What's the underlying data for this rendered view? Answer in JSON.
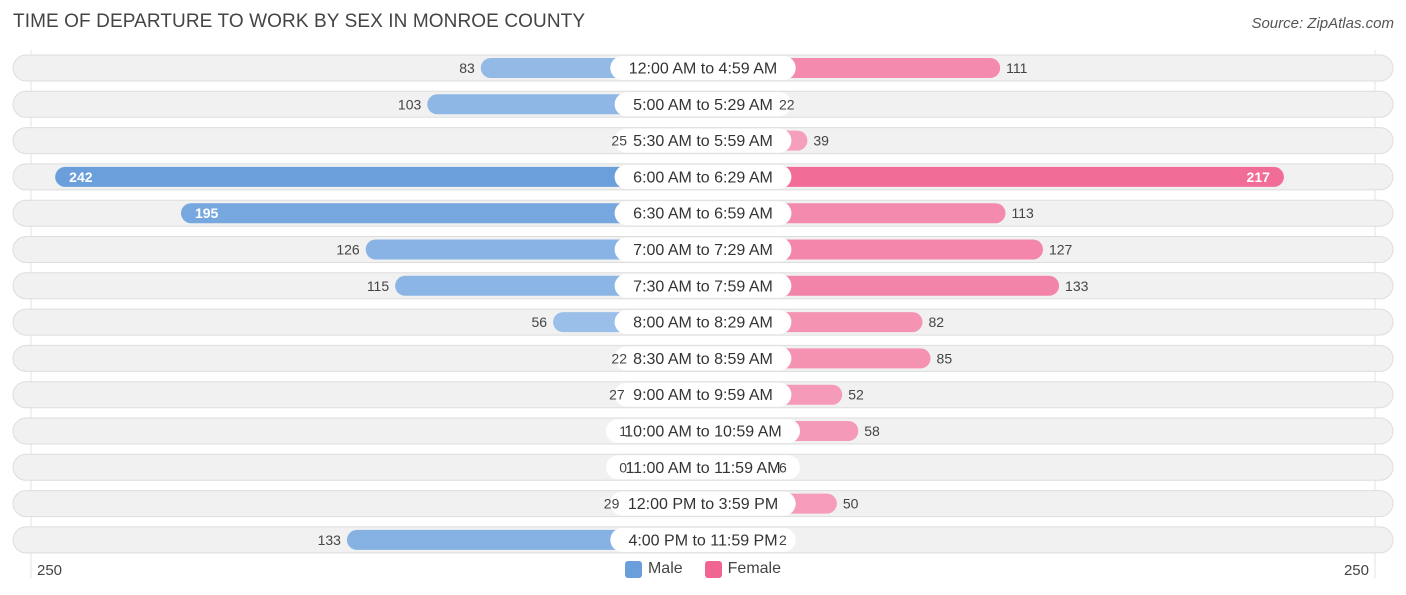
{
  "chart_data": {
    "type": "bar",
    "orientation": "diverging-horizontal",
    "title": "TIME OF DEPARTURE TO WORK BY SEX IN MONROE COUNTY",
    "source": "Source: ZipAtlas.com",
    "categories": [
      "12:00 AM to 4:59 AM",
      "5:00 AM to 5:29 AM",
      "5:30 AM to 5:59 AM",
      "6:00 AM to 6:29 AM",
      "6:30 AM to 6:59 AM",
      "7:00 AM to 7:29 AM",
      "7:30 AM to 7:59 AM",
      "8:00 AM to 8:29 AM",
      "8:30 AM to 8:59 AM",
      "9:00 AM to 9:59 AM",
      "10:00 AM to 10:59 AM",
      "11:00 AM to 11:59 AM",
      "12:00 PM to 3:59 PM",
      "4:00 PM to 11:59 PM"
    ],
    "series": [
      {
        "name": "Male",
        "values": [
          83,
          103,
          25,
          242,
          195,
          126,
          115,
          56,
          22,
          27,
          1,
          0,
          29,
          133
        ]
      },
      {
        "name": "Female",
        "values": [
          111,
          22,
          39,
          217,
          113,
          127,
          133,
          82,
          85,
          52,
          58,
          6,
          50,
          2
        ]
      }
    ],
    "axis_max": 250,
    "axis_min_label": "250",
    "axis_max_label": "250",
    "legend": [
      "Male",
      "Female"
    ],
    "colors": {
      "male_light": "#a9c8ec",
      "male_dark": "#6a9fdc",
      "female_light": "#f7aac4",
      "female_dark": "#f06592",
      "track": "#f1f1f1",
      "track_border": "#dddddd"
    }
  }
}
